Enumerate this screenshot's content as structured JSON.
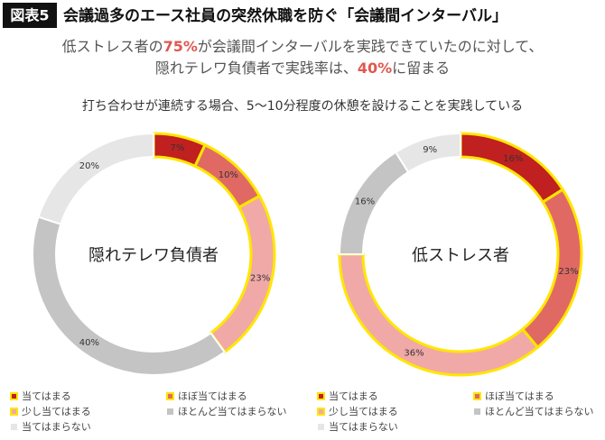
{
  "header": {
    "badge": "図表5",
    "title": "会議過多のエース社員の突然休職を防ぐ「会議間インターバル」",
    "subtitle_lines": [
      [
        "低ストレス者の",
        "75%",
        "が会議間インターバルを実践できていたのに対して、"
      ],
      [
        "隠れテレワ負債者で実践率は、",
        "40%",
        "に留まる"
      ]
    ],
    "highlight_color": "#e0574f",
    "question": "打ち合わせが連続する場合、5〜10分程度の休憩を設けることを実践している"
  },
  "chart_data": [
    {
      "type": "pie",
      "title": "隠れテレワ負債者",
      "categories": [
        "当てはまる",
        "ほぼ当てはまる",
        "少し当てはまる",
        "ほとんど当てはまらない",
        "当てはまらない"
      ],
      "values": [
        7,
        10,
        23,
        40,
        20
      ],
      "value_labels": [
        "7%",
        "10%",
        "23%",
        "40%",
        "20%"
      ],
      "colors": [
        "#c0201f",
        "#e06a63",
        "#f1a9a7",
        "#c4c4c4",
        "#e6e6e6"
      ],
      "outlined": [
        true,
        true,
        true,
        false,
        false
      ],
      "outline_color": "#ffe600"
    },
    {
      "type": "pie",
      "title": "低ストレス者",
      "categories": [
        "当てはまる",
        "ほぼ当てはまる",
        "少し当てはまる",
        "ほとんど当てはまらない",
        "当てはまらない"
      ],
      "values": [
        16,
        23,
        36,
        16,
        9
      ],
      "value_labels": [
        "16%",
        "23%",
        "36%",
        "16%",
        "9%"
      ],
      "colors": [
        "#c0201f",
        "#e06a63",
        "#f1a9a7",
        "#c4c4c4",
        "#e6e6e6"
      ],
      "outlined": [
        true,
        true,
        true,
        false,
        false
      ],
      "outline_color": "#ffe600"
    }
  ]
}
